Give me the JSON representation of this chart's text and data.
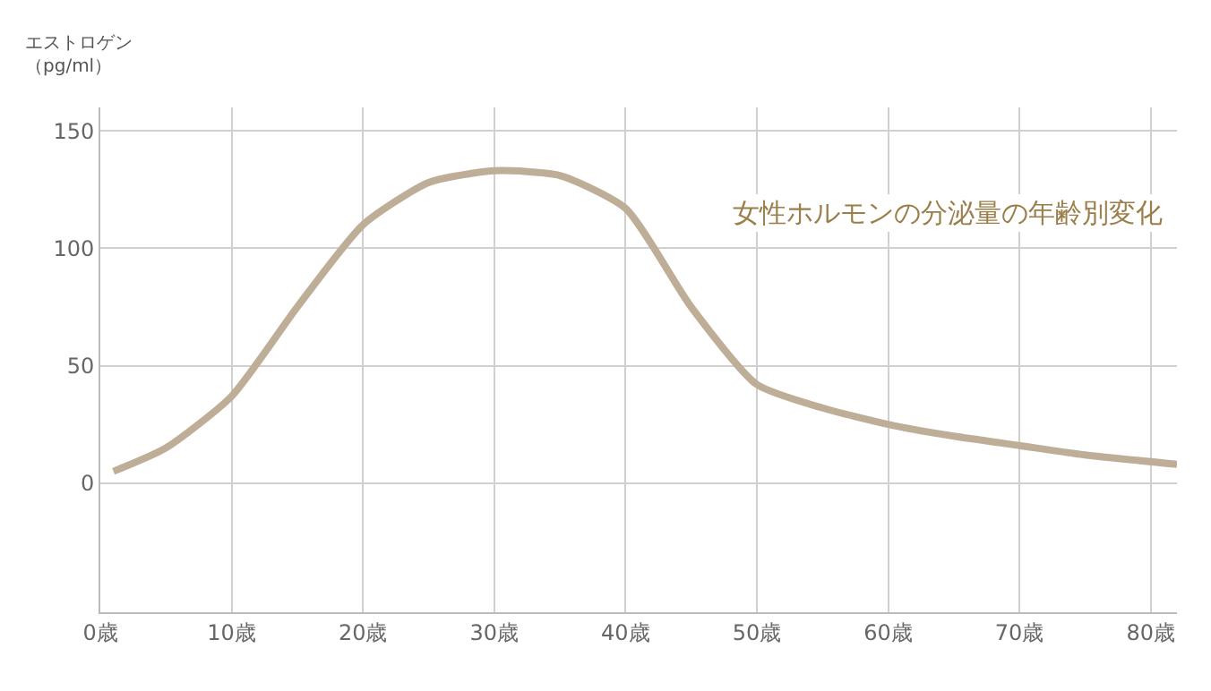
{
  "chart_data": {
    "type": "line",
    "title": "女性ホルモンの分泌量の年齢別変化",
    "ylabel": "エストロゲン（pg/ml）",
    "x": [
      1,
      5,
      10,
      15,
      20,
      25,
      30,
      35,
      40,
      45,
      50,
      55,
      60,
      65,
      70,
      75,
      82
    ],
    "series": [
      {
        "color": "#bfae97",
        "values": [
          5,
          15,
          37,
          75,
          110,
          128,
          133,
          131,
          117,
          75,
          42,
          32,
          25,
          20,
          16,
          12,
          8
        ]
      }
    ],
    "xlim": [
      0,
      82
    ],
    "ylim": [
      -55,
      160
    ],
    "xticks": [
      {
        "value": 0,
        "label": "0歳"
      },
      {
        "value": 10,
        "label": "10歳"
      },
      {
        "value": 20,
        "label": "20歳"
      },
      {
        "value": 30,
        "label": "30歳"
      },
      {
        "value": 40,
        "label": "40歳"
      },
      {
        "value": 50,
        "label": "50歳"
      },
      {
        "value": 60,
        "label": "60歳"
      },
      {
        "value": 70,
        "label": "70歳"
      },
      {
        "value": 80,
        "label": "80歳"
      }
    ],
    "yticks": [
      0,
      50,
      100,
      150
    ],
    "grid": true,
    "marker": "none",
    "line_style": "solid"
  }
}
